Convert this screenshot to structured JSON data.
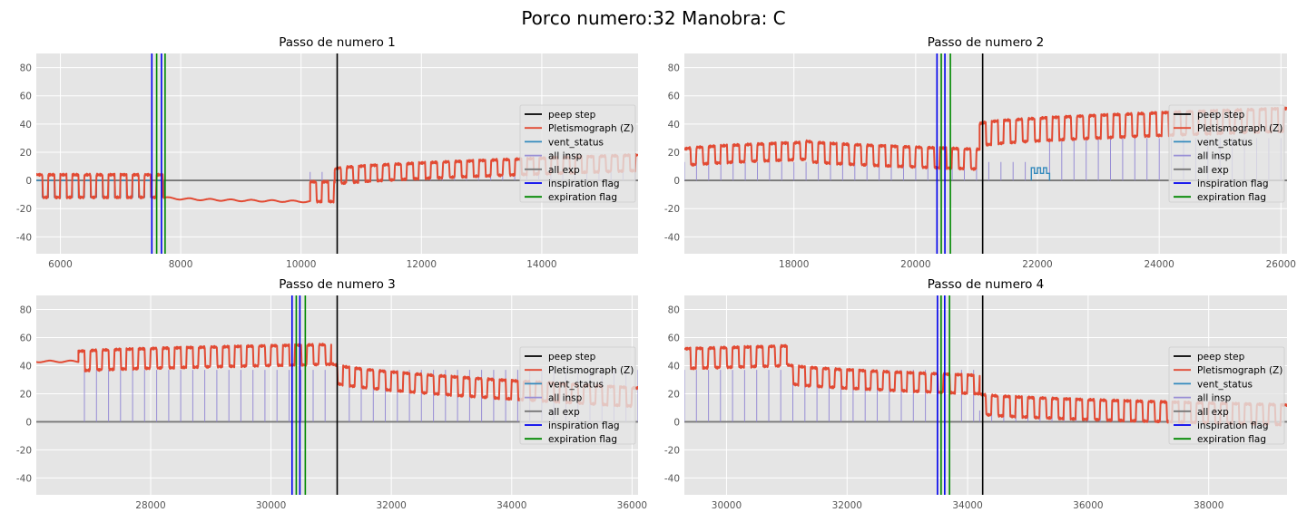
{
  "figure": {
    "suptitle": "Porco numero:32 Manobra: C"
  },
  "legend_labels": [
    "peep step",
    "Pletismograph (Z)",
    "vent_status",
    "all insp",
    "all exp",
    "inspiration flag",
    "expiration flag"
  ],
  "colors": {
    "peep_step": "#000000",
    "pleth": "#E24A33",
    "vent_status": "#348ABD",
    "all_insp": "#988ED5",
    "all_exp": "#777777",
    "insp_flag": "#0000EE",
    "exp_flag": "#008800",
    "axes_bg": "#E5E5E5",
    "grid": "#FFFFFF"
  },
  "chart_data": [
    {
      "type": "line",
      "title": "Passo de numero 1",
      "xlim": [
        5600,
        15600
      ],
      "ylim": [
        -52,
        90
      ],
      "xticks": [
        6000,
        8000,
        10000,
        12000,
        14000
      ],
      "yticks": [
        -40,
        -20,
        0,
        20,
        40,
        60,
        80
      ],
      "grid": true,
      "legend_position": "right",
      "peep_step_x": 10600,
      "inspiration_flags_x": [
        7520,
        7680
      ],
      "expiration_flags_x": [
        7600,
        7740
      ],
      "pleth_segments": [
        {
          "x0": 5600,
          "x1": 7720,
          "base": -12,
          "amp": 16,
          "period": 200,
          "trend": 0,
          "tail": 0,
          "duty": 0.55
        },
        {
          "x0": 7720,
          "x1": 10150,
          "base": -12,
          "amp": 0,
          "period": 200,
          "trend": -3,
          "tail": 0,
          "duty": 0.5
        },
        {
          "x0": 10150,
          "x1": 10560,
          "base": -15,
          "amp": 14,
          "period": 200,
          "trend": 0,
          "tail": 0,
          "duty": 0.55
        },
        {
          "x0": 10560,
          "x1": 15600,
          "base": -3,
          "amp": 11,
          "period": 200,
          "trend": 6,
          "tail": 4,
          "duty": 0.55
        }
      ],
      "vent_status_segments": [
        {
          "x0": 5600,
          "x1": 7720,
          "level": -12,
          "amp": 12,
          "period": 200
        }
      ],
      "all_insp_segments": [
        {
          "x0": 10150,
          "x1": 15600,
          "top": 6,
          "period": 200
        }
      ]
    },
    {
      "type": "line",
      "title": "Passo de numero 2",
      "xlim": [
        16200,
        26100
      ],
      "ylim": [
        -52,
        90
      ],
      "xticks": [
        18000,
        20000,
        22000,
        24000,
        26000
      ],
      "yticks": [
        -40,
        -20,
        0,
        20,
        40,
        60,
        80
      ],
      "grid": true,
      "legend_position": "right",
      "peep_step_x": 21100,
      "inspiration_flags_x": [
        20350,
        20480
      ],
      "expiration_flags_x": [
        20420,
        20570
      ],
      "pleth_segments": [
        {
          "x0": 16200,
          "x1": 18200,
          "base": 10,
          "amp": 12,
          "period": 200,
          "trend": 4,
          "tail": 1,
          "duty": 0.55
        },
        {
          "x0": 18200,
          "x1": 21050,
          "base": 14,
          "amp": 14,
          "period": 200,
          "trend": -4,
          "tail": -2,
          "duty": 0.55
        },
        {
          "x0": 21050,
          "x1": 26100,
          "base": 24,
          "amp": 16,
          "period": 200,
          "trend": 8,
          "tail": 3,
          "duty": 0.55
        }
      ],
      "vent_status_segments": [
        {
          "x0": 21900,
          "x1": 22200,
          "level": 5,
          "amp": 4,
          "period": 100
        }
      ],
      "all_insp_segments": [
        {
          "x0": 16200,
          "x1": 21900,
          "top": 13,
          "period": 200
        },
        {
          "x0": 22200,
          "x1": 26100,
          "top": 30,
          "period": 200
        }
      ]
    },
    {
      "type": "line",
      "title": "Passo de numero 3",
      "xlim": [
        26100,
        36100
      ],
      "ylim": [
        -52,
        90
      ],
      "xticks": [
        28000,
        30000,
        32000,
        34000,
        36000
      ],
      "yticks": [
        -40,
        -20,
        0,
        20,
        40,
        60,
        80
      ],
      "grid": true,
      "legend_position": "right",
      "peep_step_x": 31100,
      "inspiration_flags_x": [
        30350,
        30480
      ],
      "expiration_flags_x": [
        30420,
        30570
      ],
      "pleth_segments": [
        {
          "x0": 26100,
          "x1": 26800,
          "base": 43,
          "amp": 0,
          "period": 200,
          "trend": 0,
          "tail": 0,
          "duty": 0.5
        },
        {
          "x0": 26800,
          "x1": 31000,
          "base": 36,
          "amp": 14,
          "period": 200,
          "trend": 3,
          "tail": 2,
          "duty": 0.55
        },
        {
          "x0": 31000,
          "x1": 36100,
          "base": 29,
          "amp": 13,
          "period": 200,
          "trend": -12,
          "tail": -6,
          "duty": 0.55
        }
      ],
      "vent_status_segments": [],
      "all_insp_segments": [
        {
          "x0": 26900,
          "x1": 36100,
          "top": 37,
          "period": 200
        }
      ]
    },
    {
      "type": "line",
      "title": "Passo de numero 4",
      "xlim": [
        29300,
        39300
      ],
      "ylim": [
        -52,
        90
      ],
      "xticks": [
        30000,
        32000,
        34000,
        36000,
        38000
      ],
      "yticks": [
        -40,
        -20,
        0,
        20,
        40,
        60,
        80
      ],
      "grid": true,
      "legend_position": "right",
      "peep_step_x": 34250,
      "inspiration_flags_x": [
        33500,
        33620
      ],
      "expiration_flags_x": [
        33560,
        33700
      ],
      "pleth_segments": [
        {
          "x0": 29300,
          "x1": 31000,
          "base": 38,
          "amp": 14,
          "period": 200,
          "trend": 0,
          "tail": 2,
          "duty": 0.55
        },
        {
          "x0": 31000,
          "x1": 34200,
          "base": 28,
          "amp": 13,
          "period": 200,
          "trend": -6,
          "tail": -2,
          "duty": 0.55
        },
        {
          "x0": 34200,
          "x1": 39300,
          "base": 6,
          "amp": 14,
          "period": 200,
          "trend": -6,
          "tail": -2,
          "duty": 0.55
        }
      ],
      "vent_status_segments": [],
      "all_insp_segments": [
        {
          "x0": 29300,
          "x1": 34200,
          "top": 37,
          "period": 200
        },
        {
          "x0": 34200,
          "x1": 39300,
          "top": 8,
          "period": 200
        }
      ]
    }
  ]
}
